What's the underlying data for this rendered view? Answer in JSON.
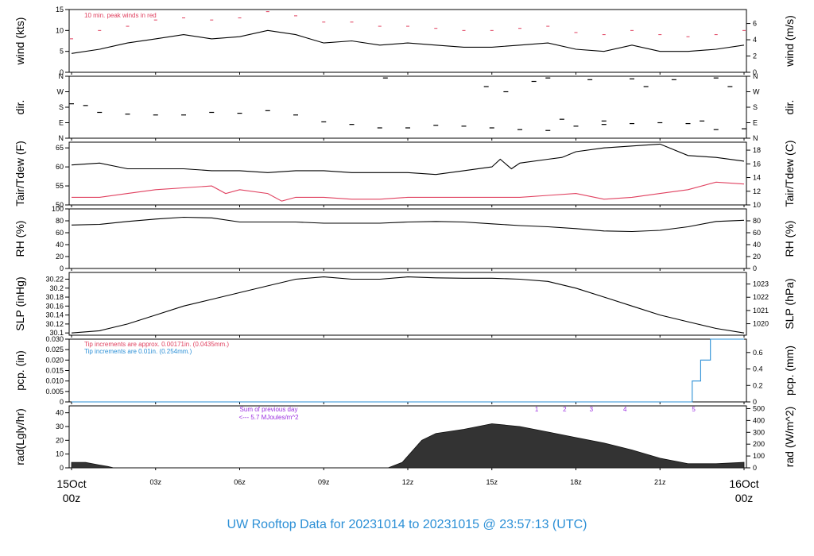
{
  "figure": {
    "title": "UW Rooftop Data for 20231014  to  20231015 @ 23:57:13  (UTC)",
    "title_color": "#2b8fd6",
    "x_start_day": "15Oct",
    "x_start_hour": "00z",
    "x_end_day": "16Oct",
    "x_end_hour": "00z",
    "x_edge_color": "#e0405f",
    "x_tick_labels": [
      "03z",
      "06z",
      "09z",
      "12z",
      "15z",
      "18z",
      "21z"
    ]
  },
  "chart_data": [
    {
      "id": "wind",
      "type": "line",
      "ylabel_left": "wind (kts)",
      "ylabel_right": "wind (m/s)",
      "ylim": [
        0,
        15
      ],
      "y_ticks": [
        0,
        5,
        10,
        15
      ],
      "right_ticks": [
        0,
        2,
        4,
        6
      ],
      "right_scale": 0.5144,
      "annotation": "10 min. peak winds in red",
      "annotation_color": "#e0405f",
      "series": [
        {
          "color": "#000000",
          "points": [
            [
              0,
              4.5
            ],
            [
              1,
              5.5
            ],
            [
              2,
              7
            ],
            [
              3,
              8
            ],
            [
              4,
              9
            ],
            [
              5,
              8
            ],
            [
              6,
              8.5
            ],
            [
              7,
              10
            ],
            [
              8,
              9
            ],
            [
              9,
              7
            ],
            [
              10,
              7.5
            ],
            [
              11,
              6.5
            ],
            [
              12,
              7
            ],
            [
              13,
              6.5
            ],
            [
              14,
              6
            ],
            [
              15,
              6
            ],
            [
              16,
              6.5
            ],
            [
              17,
              7
            ],
            [
              18,
              5.5
            ],
            [
              19,
              5
            ],
            [
              20,
              6.5
            ],
            [
              21,
              5
            ],
            [
              22,
              5
            ],
            [
              23,
              5.5
            ],
            [
              24,
              6.5
            ]
          ]
        },
        {
          "style": "dash",
          "color": "#e0405f",
          "points": [
            [
              0,
              8
            ],
            [
              1,
              10
            ],
            [
              2,
              11
            ],
            [
              3,
              12.5
            ],
            [
              4,
              13
            ],
            [
              5,
              12.5
            ],
            [
              6,
              13
            ],
            [
              7,
              14.5
            ],
            [
              8,
              13.5
            ],
            [
              9,
              12
            ],
            [
              10,
              12
            ],
            [
              11,
              11
            ],
            [
              12,
              11
            ],
            [
              13,
              10.5
            ],
            [
              14,
              10
            ],
            [
              15,
              10
            ],
            [
              16,
              10.5
            ],
            [
              17,
              11
            ],
            [
              18,
              9.5
            ],
            [
              19,
              9
            ],
            [
              20,
              10
            ],
            [
              21,
              9
            ],
            [
              22,
              8.5
            ],
            [
              23,
              9
            ],
            [
              24,
              10
            ]
          ]
        }
      ]
    },
    {
      "id": "dir",
      "type": "scatter",
      "ylabel_left": "dir.",
      "ylabel_right": "dir.",
      "ylim": [
        0,
        360
      ],
      "y_tick_values": [
        0,
        90,
        180,
        270,
        360
      ],
      "y_tick_labels": [
        "N",
        "E",
        "S",
        "W",
        "N"
      ],
      "series": [
        {
          "color": "#000000",
          "points": [
            [
              0,
              200
            ],
            [
              0.5,
              190
            ],
            [
              1,
              150
            ],
            [
              2,
              140
            ],
            [
              3,
              135
            ],
            [
              4,
              135
            ],
            [
              5,
              150
            ],
            [
              6,
              145
            ],
            [
              7,
              160
            ],
            [
              8,
              135
            ],
            [
              9,
              95
            ],
            [
              10,
              80
            ],
            [
              11,
              60
            ],
            [
              12,
              60
            ],
            [
              13,
              75
            ],
            [
              14,
              70
            ],
            [
              15,
              60
            ],
            [
              16,
              50
            ],
            [
              17,
              45
            ],
            [
              18,
              70
            ],
            [
              19,
              80
            ],
            [
              20,
              85
            ],
            [
              21,
              90
            ],
            [
              22,
              85
            ],
            [
              23,
              50
            ],
            [
              24,
              55
            ]
          ]
        },
        {
          "color": "#000000",
          "points": [
            [
              11.2,
              350
            ],
            [
              14.8,
              300
            ],
            [
              15.5,
              270
            ],
            [
              16.5,
              330
            ],
            [
              17,
              350
            ],
            [
              18.5,
              340
            ],
            [
              20,
              345
            ],
            [
              20.5,
              300
            ],
            [
              21.5,
              340
            ],
            [
              23,
              350
            ],
            [
              23.5,
              300
            ],
            [
              22.5,
              100
            ],
            [
              17.5,
              110
            ],
            [
              19,
              100
            ]
          ]
        }
      ]
    },
    {
      "id": "temp",
      "type": "line",
      "ylabel_left": "Tair/Tdew (F)",
      "ylabel_right": "Tair/Tdew (C)",
      "ylim": [
        50,
        66.5
      ],
      "y_ticks": [
        50,
        55,
        60,
        65
      ],
      "right_ticks": [
        10,
        12,
        14,
        16,
        18
      ],
      "series": [
        {
          "name": "",
          "color": "#000000",
          "points": [
            [
              0,
              60.5
            ],
            [
              1,
              61
            ],
            [
              2,
              59.5
            ],
            [
              3,
              59.5
            ],
            [
              4,
              59.5
            ],
            [
              5,
              59
            ],
            [
              6,
              59
            ],
            [
              7,
              58.5
            ],
            [
              8,
              59
            ],
            [
              9,
              59
            ],
            [
              10,
              58.5
            ],
            [
              11,
              58.5
            ],
            [
              12,
              58.5
            ],
            [
              13,
              58
            ],
            [
              14,
              59
            ],
            [
              15,
              60
            ],
            [
              15.3,
              62
            ],
            [
              15.7,
              59.5
            ],
            [
              16,
              61
            ],
            [
              17,
              62
            ],
            [
              17.5,
              62.5
            ],
            [
              18,
              64
            ],
            [
              19,
              65
            ],
            [
              20,
              65.5
            ],
            [
              21,
              66
            ],
            [
              22,
              63
            ],
            [
              23,
              62.5
            ],
            [
              24,
              61.5
            ]
          ]
        },
        {
          "name": "",
          "color": "#e0405f",
          "points": [
            [
              0,
              52
            ],
            [
              1,
              52
            ],
            [
              2,
              53
            ],
            [
              3,
              54
            ],
            [
              4,
              54.5
            ],
            [
              5,
              55
            ],
            [
              5.5,
              53
            ],
            [
              6,
              54
            ],
            [
              7,
              53
            ],
            [
              7.5,
              51
            ],
            [
              8,
              52
            ],
            [
              9,
              52
            ],
            [
              10,
              51.5
            ],
            [
              11,
              51.5
            ],
            [
              12,
              52
            ],
            [
              13,
              52
            ],
            [
              14,
              52
            ],
            [
              15,
              52
            ],
            [
              16,
              52
            ],
            [
              17,
              52.5
            ],
            [
              18,
              53
            ],
            [
              19,
              51.5
            ],
            [
              20,
              52
            ],
            [
              21,
              53
            ],
            [
              22,
              54
            ],
            [
              23,
              56
            ],
            [
              24,
              55.5
            ]
          ]
        }
      ]
    },
    {
      "id": "rh",
      "type": "line",
      "ylabel_left": "RH (%)",
      "ylabel_right": "RH (%)",
      "ylim": [
        0,
        100
      ],
      "y_ticks": [
        0,
        20,
        40,
        60,
        80,
        100
      ],
      "right_ticks": [
        0,
        20,
        40,
        60,
        80
      ],
      "series": [
        {
          "color": "#000000",
          "points": [
            [
              0,
              73
            ],
            [
              1,
              74
            ],
            [
              2,
              79
            ],
            [
              3,
              83
            ],
            [
              4,
              86
            ],
            [
              5,
              85
            ],
            [
              6,
              78
            ],
            [
              7,
              78
            ],
            [
              8,
              78
            ],
            [
              9,
              76
            ],
            [
              10,
              76
            ],
            [
              11,
              76
            ],
            [
              12,
              78
            ],
            [
              13,
              79
            ],
            [
              14,
              78
            ],
            [
              15,
              75
            ],
            [
              16,
              72
            ],
            [
              17,
              70
            ],
            [
              18,
              67
            ],
            [
              19,
              63
            ],
            [
              20,
              62
            ],
            [
              21,
              64
            ],
            [
              22,
              70
            ],
            [
              23,
              79
            ],
            [
              24,
              81
            ]
          ]
        }
      ]
    },
    {
      "id": "slp",
      "type": "line",
      "ylabel_left": "SLP (inHg)",
      "ylabel_right": "SLP (hPa)",
      "ylim": [
        30.095,
        30.235
      ],
      "y_ticks": [
        30.1,
        30.12,
        30.14,
        30.16,
        30.18,
        30.2,
        30.22
      ],
      "right_ticks": [
        1020,
        1021,
        1022,
        1023
      ],
      "series": [
        {
          "color": "#000000",
          "points": [
            [
              0,
              30.1
            ],
            [
              1,
              30.105
            ],
            [
              2,
              30.12
            ],
            [
              3,
              30.14
            ],
            [
              4,
              30.16
            ],
            [
              5,
              30.175
            ],
            [
              6,
              30.19
            ],
            [
              7,
              30.205
            ],
            [
              8,
              30.22
            ],
            [
              9,
              30.225
            ],
            [
              10,
              30.22
            ],
            [
              11,
              30.22
            ],
            [
              12,
              30.225
            ],
            [
              13,
              30.223
            ],
            [
              14,
              30.222
            ],
            [
              15,
              30.222
            ],
            [
              16,
              30.22
            ],
            [
              17,
              30.215
            ],
            [
              18,
              30.2
            ],
            [
              19,
              30.18
            ],
            [
              20,
              30.16
            ],
            [
              21,
              30.14
            ],
            [
              22,
              30.125
            ],
            [
              23,
              30.11
            ],
            [
              24,
              30.1
            ]
          ]
        }
      ]
    },
    {
      "id": "pcp",
      "type": "line",
      "ylabel_left": "pcp. (in)",
      "ylabel_right": "pcp. (mm)",
      "ylim": [
        0,
        0.03
      ],
      "y_ticks": [
        0,
        0.005,
        0.01,
        0.015,
        0.02,
        0.025,
        0.03
      ],
      "right_ticks": [
        0,
        0.2,
        0.4,
        0.6
      ],
      "annotations": [
        {
          "text": "Tip increments are approx. 0.00171in. (0.0435mm.)",
          "color": "#e0405f"
        },
        {
          "text": "Tip increments are 0.01in. (0.254mm.)",
          "color": "#2b8fd6"
        }
      ],
      "series": [
        {
          "color": "#2b8fd6",
          "step": true,
          "points": [
            [
              0,
              0
            ],
            [
              22.15,
              0
            ],
            [
              22.15,
              0.01
            ],
            [
              22.45,
              0.01
            ],
            [
              22.45,
              0.02
            ],
            [
              22.8,
              0.02
            ],
            [
              22.8,
              0.03
            ],
            [
              24,
              0.03
            ]
          ]
        }
      ]
    },
    {
      "id": "rad",
      "type": "area",
      "ylabel_left": "rad(Lgly/hr)",
      "ylabel_right": "rad (W/m^2)",
      "ylim": [
        0,
        45
      ],
      "y_ticks": [
        0,
        10,
        20,
        30,
        40
      ],
      "right_ticks": [
        0,
        100,
        200,
        300,
        400,
        500
      ],
      "annotation_lines": [
        "Sum of previous day",
        "<--- 5.7 MJoules/m^2"
      ],
      "annotation_color": "#9b30e0",
      "markers": [
        {
          "label": "1",
          "x": 16.6
        },
        {
          "label": "2",
          "x": 17.6
        },
        {
          "label": "3",
          "x": 18.55
        },
        {
          "label": "4",
          "x": 19.75
        },
        {
          "label": "5",
          "x": 22.2
        }
      ],
      "series": [
        {
          "color": "#333333",
          "points": [
            [
              0,
              4
            ],
            [
              0.5,
              4
            ],
            [
              1,
              2
            ],
            [
              1.3,
              1
            ],
            [
              1.5,
              0
            ],
            [
              11.3,
              0
            ],
            [
              11.8,
              4
            ],
            [
              12.5,
              20
            ],
            [
              13,
              25
            ],
            [
              14,
              28
            ],
            [
              15,
              32
            ],
            [
              16,
              30
            ],
            [
              17,
              26
            ],
            [
              18,
              22
            ],
            [
              19,
              18
            ],
            [
              20,
              13
            ],
            [
              21,
              7
            ],
            [
              22,
              3
            ],
            [
              23,
              3
            ],
            [
              24,
              4
            ]
          ]
        }
      ]
    }
  ]
}
